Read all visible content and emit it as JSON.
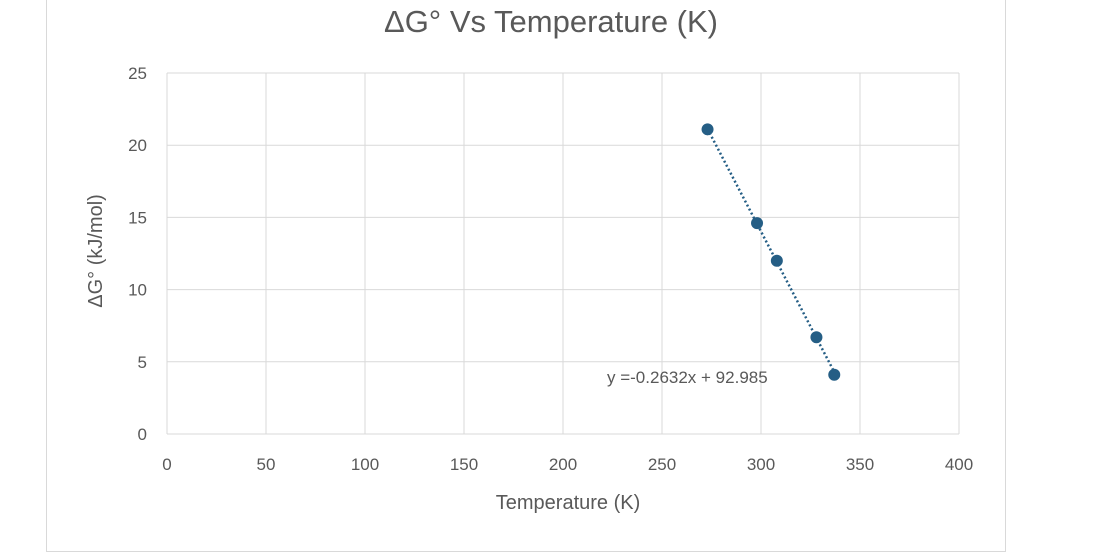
{
  "chart_data": {
    "type": "scatter",
    "title": "ΔG° Vs Temperature (K)",
    "xlabel": "Temperature (K)",
    "ylabel": "ΔG° (kJ/mol)",
    "xlim": [
      0,
      400
    ],
    "ylim": [
      0,
      25
    ],
    "xticks": [
      0,
      50,
      100,
      150,
      200,
      250,
      300,
      350,
      400
    ],
    "yticks": [
      0,
      5,
      10,
      15,
      20,
      25
    ],
    "grid": true,
    "legend": "none",
    "series": [
      {
        "color": "#255e85",
        "points": [
          {
            "x": 273,
            "y": 21.1
          },
          {
            "x": 298,
            "y": 14.6
          },
          {
            "x": 308,
            "y": 12.0
          },
          {
            "x": 328,
            "y": 6.7
          },
          {
            "x": 337,
            "y": 4.1
          }
        ]
      }
    ],
    "trendline": {
      "type": "linear",
      "style": "dotted",
      "color": "#255e85",
      "slope": -0.2632,
      "intercept": 92.985,
      "x_range": [
        273,
        337
      ],
      "equation": "y =-0.2632x + 92.985"
    }
  }
}
